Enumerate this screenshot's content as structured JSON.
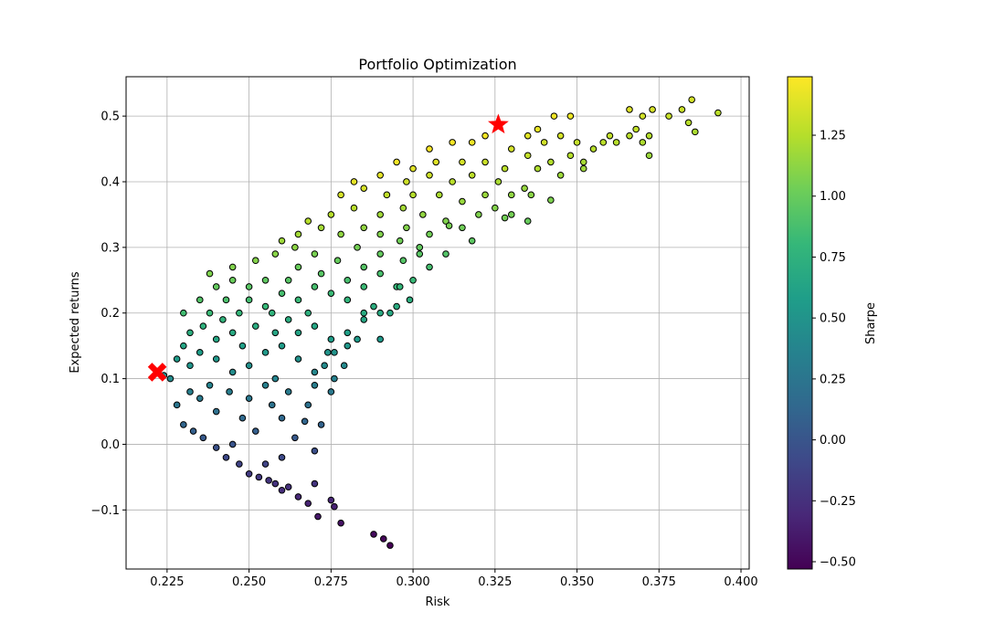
{
  "chart_data": {
    "type": "scatter",
    "title": "Portfolio Optimization",
    "xlabel": "Risk",
    "ylabel": "Expected returns",
    "xlim": [
      0.2125,
      0.4025
    ],
    "ylim": [
      -0.19,
      0.56
    ],
    "xticks": [
      0.225,
      0.25,
      0.275,
      0.3,
      0.325,
      0.35,
      0.375,
      0.4
    ],
    "xtick_labels": [
      "0.225",
      "0.250",
      "0.275",
      "0.300",
      "0.325",
      "0.350",
      "0.375",
      "0.400"
    ],
    "yticks": [
      -0.1,
      0.0,
      0.1,
      0.2,
      0.3,
      0.4,
      0.5
    ],
    "ytick_labels": [
      "−0.1",
      "0.0",
      "0.1",
      "0.2",
      "0.3",
      "0.4",
      "0.5"
    ],
    "grid": true,
    "colormap": "viridis",
    "color_variable": "Sharpe",
    "colorbar": {
      "label": "Sharpe",
      "range": [
        -0.53,
        1.49
      ],
      "ticks": [
        -0.5,
        -0.25,
        0.0,
        0.25,
        0.5,
        0.75,
        1.0,
        1.25
      ],
      "tick_labels": [
        "−0.50",
        "−0.25",
        "0.00",
        "0.25",
        "0.50",
        "0.75",
        "1.00",
        "1.25"
      ]
    },
    "marker_edge_color": "#000000",
    "highlight_color": "#ff0000",
    "highlights": [
      {
        "marker": "star",
        "x": 0.326,
        "y": 0.487
      },
      {
        "marker": "X",
        "x": 0.222,
        "y": 0.11
      }
    ],
    "series": [
      {
        "points": [
          [
            0.224,
            0.105
          ],
          [
            0.226,
            0.1
          ],
          [
            0.228,
            0.06
          ],
          [
            0.23,
            0.03
          ],
          [
            0.233,
            0.02
          ],
          [
            0.236,
            0.01
          ],
          [
            0.24,
            -0.005
          ],
          [
            0.243,
            -0.02
          ],
          [
            0.247,
            -0.03
          ],
          [
            0.25,
            -0.045
          ],
          [
            0.253,
            -0.05
          ],
          [
            0.256,
            -0.055
          ],
          [
            0.258,
            -0.06
          ],
          [
            0.26,
            -0.07
          ],
          [
            0.265,
            -0.08
          ],
          [
            0.268,
            -0.09
          ],
          [
            0.271,
            -0.11
          ],
          [
            0.276,
            -0.095
          ],
          [
            0.278,
            -0.12
          ],
          [
            0.288,
            -0.137
          ],
          [
            0.291,
            -0.144
          ],
          [
            0.293,
            -0.154
          ],
          [
            0.27,
            -0.06
          ],
          [
            0.275,
            -0.085
          ],
          [
            0.262,
            -0.065
          ],
          [
            0.26,
            -0.02
          ],
          [
            0.27,
            -0.01
          ],
          [
            0.255,
            -0.03
          ],
          [
            0.245,
            0.0
          ],
          [
            0.252,
            0.02
          ],
          [
            0.264,
            0.01
          ],
          [
            0.267,
            0.035
          ],
          [
            0.272,
            0.03
          ],
          [
            0.26,
            0.04
          ],
          [
            0.257,
            0.06
          ],
          [
            0.268,
            0.06
          ],
          [
            0.27,
            0.09
          ],
          [
            0.275,
            0.08
          ],
          [
            0.262,
            0.08
          ],
          [
            0.258,
            0.1
          ],
          [
            0.273,
            0.12
          ],
          [
            0.265,
            0.13
          ],
          [
            0.276,
            0.14
          ],
          [
            0.27,
            0.11
          ],
          [
            0.248,
            0.04
          ],
          [
            0.24,
            0.05
          ],
          [
            0.235,
            0.07
          ],
          [
            0.232,
            0.08
          ],
          [
            0.238,
            0.09
          ],
          [
            0.244,
            0.08
          ],
          [
            0.25,
            0.07
          ],
          [
            0.255,
            0.09
          ],
          [
            0.245,
            0.11
          ],
          [
            0.25,
            0.12
          ],
          [
            0.26,
            0.15
          ],
          [
            0.255,
            0.14
          ],
          [
            0.265,
            0.17
          ],
          [
            0.27,
            0.18
          ],
          [
            0.28,
            0.17
          ],
          [
            0.285,
            0.19
          ],
          [
            0.29,
            0.2
          ],
          [
            0.295,
            0.21
          ],
          [
            0.285,
            0.2
          ],
          [
            0.28,
            0.22
          ],
          [
            0.275,
            0.16
          ],
          [
            0.268,
            0.2
          ],
          [
            0.262,
            0.19
          ],
          [
            0.258,
            0.17
          ],
          [
            0.232,
            0.12
          ],
          [
            0.228,
            0.13
          ],
          [
            0.23,
            0.15
          ],
          [
            0.235,
            0.14
          ],
          [
            0.24,
            0.13
          ],
          [
            0.24,
            0.16
          ],
          [
            0.245,
            0.17
          ],
          [
            0.236,
            0.18
          ],
          [
            0.242,
            0.19
          ],
          [
            0.232,
            0.17
          ],
          [
            0.248,
            0.15
          ],
          [
            0.252,
            0.18
          ],
          [
            0.247,
            0.2
          ],
          [
            0.238,
            0.2
          ],
          [
            0.243,
            0.22
          ],
          [
            0.25,
            0.22
          ],
          [
            0.255,
            0.21
          ],
          [
            0.26,
            0.23
          ],
          [
            0.257,
            0.2
          ],
          [
            0.265,
            0.22
          ],
          [
            0.262,
            0.25
          ],
          [
            0.27,
            0.24
          ],
          [
            0.275,
            0.23
          ],
          [
            0.28,
            0.25
          ],
          [
            0.285,
            0.24
          ],
          [
            0.29,
            0.26
          ],
          [
            0.295,
            0.24
          ],
          [
            0.3,
            0.25
          ],
          [
            0.297,
            0.28
          ],
          [
            0.285,
            0.27
          ],
          [
            0.272,
            0.26
          ],
          [
            0.265,
            0.27
          ],
          [
            0.255,
            0.25
          ],
          [
            0.25,
            0.24
          ],
          [
            0.245,
            0.25
          ],
          [
            0.24,
            0.24
          ],
          [
            0.235,
            0.22
          ],
          [
            0.23,
            0.2
          ],
          [
            0.238,
            0.26
          ],
          [
            0.245,
            0.27
          ],
          [
            0.252,
            0.28
          ],
          [
            0.258,
            0.29
          ],
          [
            0.264,
            0.3
          ],
          [
            0.27,
            0.29
          ],
          [
            0.277,
            0.28
          ],
          [
            0.283,
            0.3
          ],
          [
            0.29,
            0.29
          ],
          [
            0.296,
            0.31
          ],
          [
            0.302,
            0.3
          ],
          [
            0.305,
            0.27
          ],
          [
            0.31,
            0.29
          ],
          [
            0.305,
            0.32
          ],
          [
            0.298,
            0.33
          ],
          [
            0.29,
            0.32
          ],
          [
            0.285,
            0.33
          ],
          [
            0.278,
            0.32
          ],
          [
            0.272,
            0.33
          ],
          [
            0.265,
            0.32
          ],
          [
            0.26,
            0.31
          ],
          [
            0.268,
            0.34
          ],
          [
            0.275,
            0.35
          ],
          [
            0.282,
            0.36
          ],
          [
            0.29,
            0.35
          ],
          [
            0.297,
            0.36
          ],
          [
            0.303,
            0.35
          ],
          [
            0.31,
            0.34
          ],
          [
            0.315,
            0.33
          ],
          [
            0.32,
            0.35
          ],
          [
            0.318,
            0.31
          ],
          [
            0.325,
            0.36
          ],
          [
            0.322,
            0.38
          ],
          [
            0.315,
            0.37
          ],
          [
            0.308,
            0.38
          ],
          [
            0.3,
            0.38
          ],
          [
            0.292,
            0.38
          ],
          [
            0.285,
            0.39
          ],
          [
            0.278,
            0.38
          ],
          [
            0.282,
            0.4
          ],
          [
            0.29,
            0.41
          ],
          [
            0.298,
            0.4
          ],
          [
            0.305,
            0.41
          ],
          [
            0.312,
            0.4
          ],
          [
            0.318,
            0.41
          ],
          [
            0.326,
            0.4
          ],
          [
            0.33,
            0.38
          ],
          [
            0.334,
            0.39
          ],
          [
            0.328,
            0.42
          ],
          [
            0.322,
            0.43
          ],
          [
            0.315,
            0.43
          ],
          [
            0.307,
            0.43
          ],
          [
            0.3,
            0.42
          ],
          [
            0.295,
            0.43
          ],
          [
            0.305,
            0.45
          ],
          [
            0.312,
            0.46
          ],
          [
            0.318,
            0.46
          ],
          [
            0.322,
            0.47
          ],
          [
            0.33,
            0.45
          ],
          [
            0.335,
            0.44
          ],
          [
            0.338,
            0.42
          ],
          [
            0.342,
            0.43
          ],
          [
            0.345,
            0.41
          ],
          [
            0.34,
            0.46
          ],
          [
            0.345,
            0.47
          ],
          [
            0.35,
            0.46
          ],
          [
            0.348,
            0.44
          ],
          [
            0.352,
            0.43
          ],
          [
            0.355,
            0.45
          ],
          [
            0.358,
            0.46
          ],
          [
            0.36,
            0.47
          ],
          [
            0.362,
            0.46
          ],
          [
            0.366,
            0.47
          ],
          [
            0.37,
            0.46
          ],
          [
            0.372,
            0.47
          ],
          [
            0.368,
            0.48
          ],
          [
            0.366,
            0.51
          ],
          [
            0.37,
            0.5
          ],
          [
            0.373,
            0.51
          ],
          [
            0.378,
            0.5
          ],
          [
            0.382,
            0.51
          ],
          [
            0.384,
            0.49
          ],
          [
            0.385,
            0.525
          ],
          [
            0.386,
            0.476
          ],
          [
            0.393,
            0.505
          ],
          [
            0.372,
            0.44
          ],
          [
            0.348,
            0.5
          ],
          [
            0.343,
            0.5
          ],
          [
            0.338,
            0.48
          ],
          [
            0.335,
            0.47
          ],
          [
            0.352,
            0.42
          ],
          [
            0.33,
            0.35
          ],
          [
            0.328,
            0.345
          ],
          [
            0.335,
            0.34
          ],
          [
            0.342,
            0.372
          ],
          [
            0.336,
            0.38
          ],
          [
            0.311,
            0.333
          ],
          [
            0.302,
            0.29
          ],
          [
            0.299,
            0.22
          ],
          [
            0.296,
            0.24
          ],
          [
            0.293,
            0.2
          ],
          [
            0.288,
            0.21
          ],
          [
            0.29,
            0.16
          ],
          [
            0.283,
            0.16
          ],
          [
            0.28,
            0.15
          ],
          [
            0.274,
            0.14
          ],
          [
            0.279,
            0.12
          ],
          [
            0.276,
            0.1
          ]
        ]
      }
    ]
  }
}
